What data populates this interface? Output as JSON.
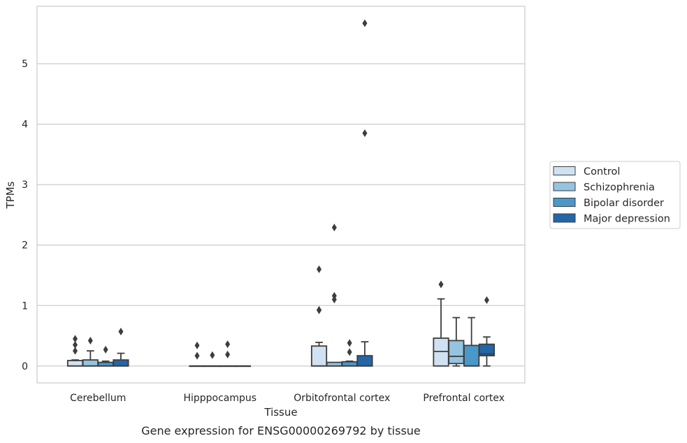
{
  "chart_data": {
    "type": "box",
    "caption": "Gene expression for ENSG00000269792 by tissue",
    "xlabel": "Tissue",
    "ylabel": "TPMs",
    "ylim": [
      -0.28,
      5.95
    ],
    "yticks": [
      0,
      1,
      2,
      3,
      4,
      5
    ],
    "grid": "horizontal",
    "legend_position": "right",
    "categories": [
      "Cerebellum",
      "Hipppocampus",
      "Orbitofrontal cortex",
      "Prefrontal cortex"
    ],
    "series": [
      {
        "name": "Control",
        "color": "#d0e1f2",
        "boxes": [
          {
            "q1": 0.0,
            "median": 0.0,
            "q3": 0.09,
            "whisker_low": 0.0,
            "whisker_high": 0.1,
            "outliers": [
              0.25,
              0.35,
              0.45
            ]
          },
          {
            "q1": 0.0,
            "median": 0.0,
            "q3": 0.0,
            "whisker_low": 0.0,
            "whisker_high": 0.0,
            "outliers": [
              0.17,
              0.34
            ]
          },
          {
            "q1": 0.0,
            "median": 0.0,
            "q3": 0.33,
            "whisker_low": 0.0,
            "whisker_high": 0.39,
            "outliers": [
              0.92,
              0.93,
              1.6
            ]
          },
          {
            "q1": 0.0,
            "median": 0.24,
            "q3": 0.46,
            "whisker_low": 0.0,
            "whisker_high": 1.11,
            "outliers": [
              1.35
            ]
          }
        ]
      },
      {
        "name": "Schizophrenia",
        "color": "#94c4df",
        "boxes": [
          {
            "q1": 0.0,
            "median": 0.0,
            "q3": 0.1,
            "whisker_low": 0.0,
            "whisker_high": 0.25,
            "outliers": [
              0.42
            ]
          },
          {
            "q1": 0.0,
            "median": 0.0,
            "q3": 0.0,
            "whisker_low": 0.0,
            "whisker_high": 0.0,
            "outliers": [
              0.18
            ]
          },
          {
            "q1": 0.0,
            "median": 0.0,
            "q3": 0.06,
            "whisker_low": 0.0,
            "whisker_high": 0.06,
            "outliers": [
              1.1,
              1.16,
              2.29
            ]
          },
          {
            "q1": 0.04,
            "median": 0.16,
            "q3": 0.42,
            "whisker_low": 0.0,
            "whisker_high": 0.8,
            "outliers": []
          }
        ]
      },
      {
        "name": "Bipolar disorder",
        "color": "#4a98c9",
        "boxes": [
          {
            "q1": 0.0,
            "median": 0.0,
            "q3": 0.06,
            "whisker_low": 0.0,
            "whisker_high": 0.08,
            "outliers": [
              0.27
            ]
          },
          {
            "q1": 0.0,
            "median": 0.0,
            "q3": 0.0,
            "whisker_low": 0.0,
            "whisker_high": 0.0,
            "outliers": [
              0.19,
              0.36
            ]
          },
          {
            "q1": 0.0,
            "median": 0.0,
            "q3": 0.07,
            "whisker_low": 0.0,
            "whisker_high": 0.08,
            "outliers": [
              0.23,
              0.38
            ]
          },
          {
            "q1": 0.0,
            "median": 0.0,
            "q3": 0.34,
            "whisker_low": 0.0,
            "whisker_high": 0.8,
            "outliers": []
          }
        ]
      },
      {
        "name": "Major depression",
        "color": "#2366a9",
        "boxes": [
          {
            "q1": 0.0,
            "median": 0.0,
            "q3": 0.1,
            "whisker_low": 0.0,
            "whisker_high": 0.21,
            "outliers": [
              0.57
            ]
          },
          {
            "q1": 0.0,
            "median": 0.0,
            "q3": 0.0,
            "whisker_low": 0.0,
            "whisker_high": 0.0,
            "outliers": []
          },
          {
            "q1": 0.0,
            "median": 0.0,
            "q3": 0.17,
            "whisker_low": 0.0,
            "whisker_high": 0.4,
            "outliers": [
              3.85,
              5.67
            ]
          },
          {
            "q1": 0.17,
            "median": 0.2,
            "q3": 0.36,
            "whisker_low": 0.0,
            "whisker_high": 0.48,
            "outliers": [
              1.09
            ]
          }
        ]
      }
    ]
  }
}
